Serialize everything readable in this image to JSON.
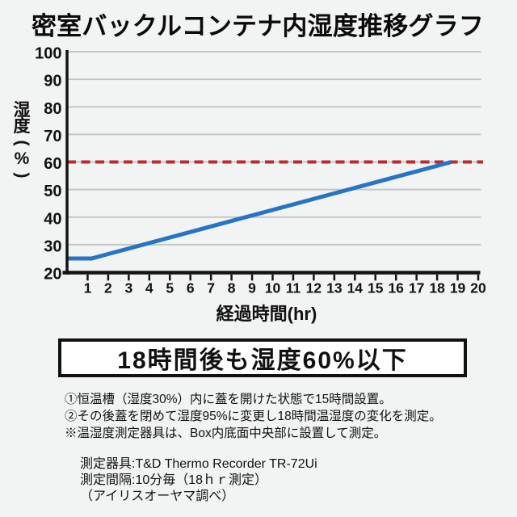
{
  "title": "密室バックルコンテナ内湿度推移グラフ",
  "chart_data": {
    "type": "line",
    "title": "密室バックルコンテナ内湿度推移グラフ",
    "xlabel": "経過時間(hr)",
    "ylabel": "湿度(%)",
    "xlim": [
      0,
      20
    ],
    "ylim": [
      20,
      100
    ],
    "x_ticks": [
      1,
      2,
      3,
      4,
      5,
      6,
      7,
      8,
      9,
      10,
      11,
      12,
      13,
      14,
      15,
      16,
      17,
      18,
      19,
      20
    ],
    "y_ticks": [
      20,
      30,
      40,
      50,
      60,
      70,
      80,
      90,
      100
    ],
    "grid": true,
    "legend": false,
    "threshold_line": {
      "y": 60,
      "color": "#c1272b",
      "style": "dashed"
    },
    "series": [
      {
        "name": "湿度",
        "color": "#2673c8",
        "points": [
          [
            0,
            25
          ],
          [
            1.2,
            25
          ],
          [
            18.7,
            60
          ]
        ]
      }
    ]
  },
  "callout": {
    "text": "18時間後も湿度60%以下"
  },
  "notes": [
    "①恒温槽（湿度30%）内に蓋を開けた状態で15時間設置。",
    "②その後蓋を閉めて湿度95%に変更し18時間温湿度の変化を測定。",
    "※温湿度測定器具は、Box内底面中央部に設置して測定。"
  ],
  "measurement_info": [
    "測定器具:T&D Thermo Recorder TR-72Ui",
    "測定間隔:10分毎（18ｈｒ測定）",
    "（アイリスオーヤマ調べ）"
  ],
  "colors": {
    "background": "#f2f3f3",
    "line": "#2673c8",
    "threshold": "#c1272b",
    "grid": "#c5c7c7",
    "axis": "#141414",
    "text": "#111111",
    "callout_bg": "#ffffff",
    "callout_border": "#111111"
  }
}
